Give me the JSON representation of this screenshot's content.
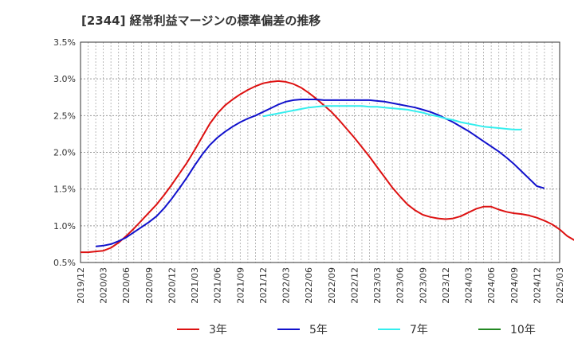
{
  "chart_data": {
    "type": "line",
    "title": "[2344]  経常利益マージンの標準偏差の推移",
    "xlabel": "",
    "ylabel": "",
    "x_ticks": [
      "2019/12",
      "2020/03",
      "2020/06",
      "2020/09",
      "2020/12",
      "2021/03",
      "2021/06",
      "2021/09",
      "2021/12",
      "2022/03",
      "2022/06",
      "2022/09",
      "2022/12",
      "2023/03",
      "2023/06",
      "2023/09",
      "2023/12",
      "2024/03",
      "2024/06",
      "2024/09",
      "2024/12",
      "2025/03"
    ],
    "y_ticks": [
      "0.5%",
      "1.0%",
      "1.5%",
      "2.0%",
      "2.5%",
      "3.0%",
      "3.5%"
    ],
    "ylim": [
      0.5,
      3.5
    ],
    "grid": true,
    "legend_position": "bottom",
    "colors": {
      "3y": "#dd1111",
      "5y": "#1111cc",
      "7y": "#33eeee",
      "10y": "#228822"
    },
    "series": [
      {
        "name": "3年",
        "color": "#dd1111",
        "start": "2019/12",
        "values": [
          0.64,
          0.64,
          0.65,
          0.66,
          0.7,
          0.77,
          0.86,
          0.96,
          1.07,
          1.18,
          1.29,
          1.42,
          1.56,
          1.71,
          1.86,
          2.03,
          2.21,
          2.39,
          2.53,
          2.64,
          2.72,
          2.79,
          2.85,
          2.9,
          2.94,
          2.96,
          2.97,
          2.96,
          2.93,
          2.88,
          2.81,
          2.73,
          2.64,
          2.55,
          2.44,
          2.32,
          2.2,
          2.07,
          1.94,
          1.8,
          1.66,
          1.52,
          1.4,
          1.29,
          1.21,
          1.15,
          1.12,
          1.1,
          1.09,
          1.1,
          1.13,
          1.18,
          1.23,
          1.26,
          1.26,
          1.22,
          1.19,
          1.17,
          1.16,
          1.14,
          1.11,
          1.07,
          1.02,
          0.95,
          0.86,
          0.8
        ]
      },
      {
        "name": "5年",
        "color": "#1111cc",
        "start": "2020/02",
        "values": [
          0.72,
          0.73,
          0.75,
          0.79,
          0.84,
          0.91,
          0.98,
          1.05,
          1.13,
          1.24,
          1.37,
          1.51,
          1.66,
          1.82,
          1.97,
          2.1,
          2.2,
          2.28,
          2.35,
          2.41,
          2.46,
          2.5,
          2.55,
          2.6,
          2.65,
          2.69,
          2.71,
          2.72,
          2.72,
          2.72,
          2.71,
          2.71,
          2.71,
          2.71,
          2.71,
          2.71,
          2.71,
          2.7,
          2.69,
          2.67,
          2.65,
          2.63,
          2.61,
          2.58,
          2.55,
          2.51,
          2.46,
          2.41,
          2.35,
          2.29,
          2.22,
          2.15,
          2.08,
          2.01,
          1.93,
          1.84,
          1.74,
          1.64,
          1.54,
          1.51
        ]
      },
      {
        "name": "7年",
        "color": "#33eeee",
        "start": "2021/12",
        "values": [
          2.49,
          2.51,
          2.53,
          2.55,
          2.57,
          2.59,
          2.61,
          2.62,
          2.63,
          2.63,
          2.63,
          2.63,
          2.63,
          2.63,
          2.62,
          2.62,
          2.61,
          2.6,
          2.59,
          2.58,
          2.56,
          2.54,
          2.51,
          2.49,
          2.46,
          2.44,
          2.41,
          2.39,
          2.37,
          2.35,
          2.34,
          2.33,
          2.32,
          2.31,
          2.31
        ]
      },
      {
        "name": "10年",
        "color": "#228822",
        "start": "2025/03",
        "values": []
      }
    ]
  }
}
